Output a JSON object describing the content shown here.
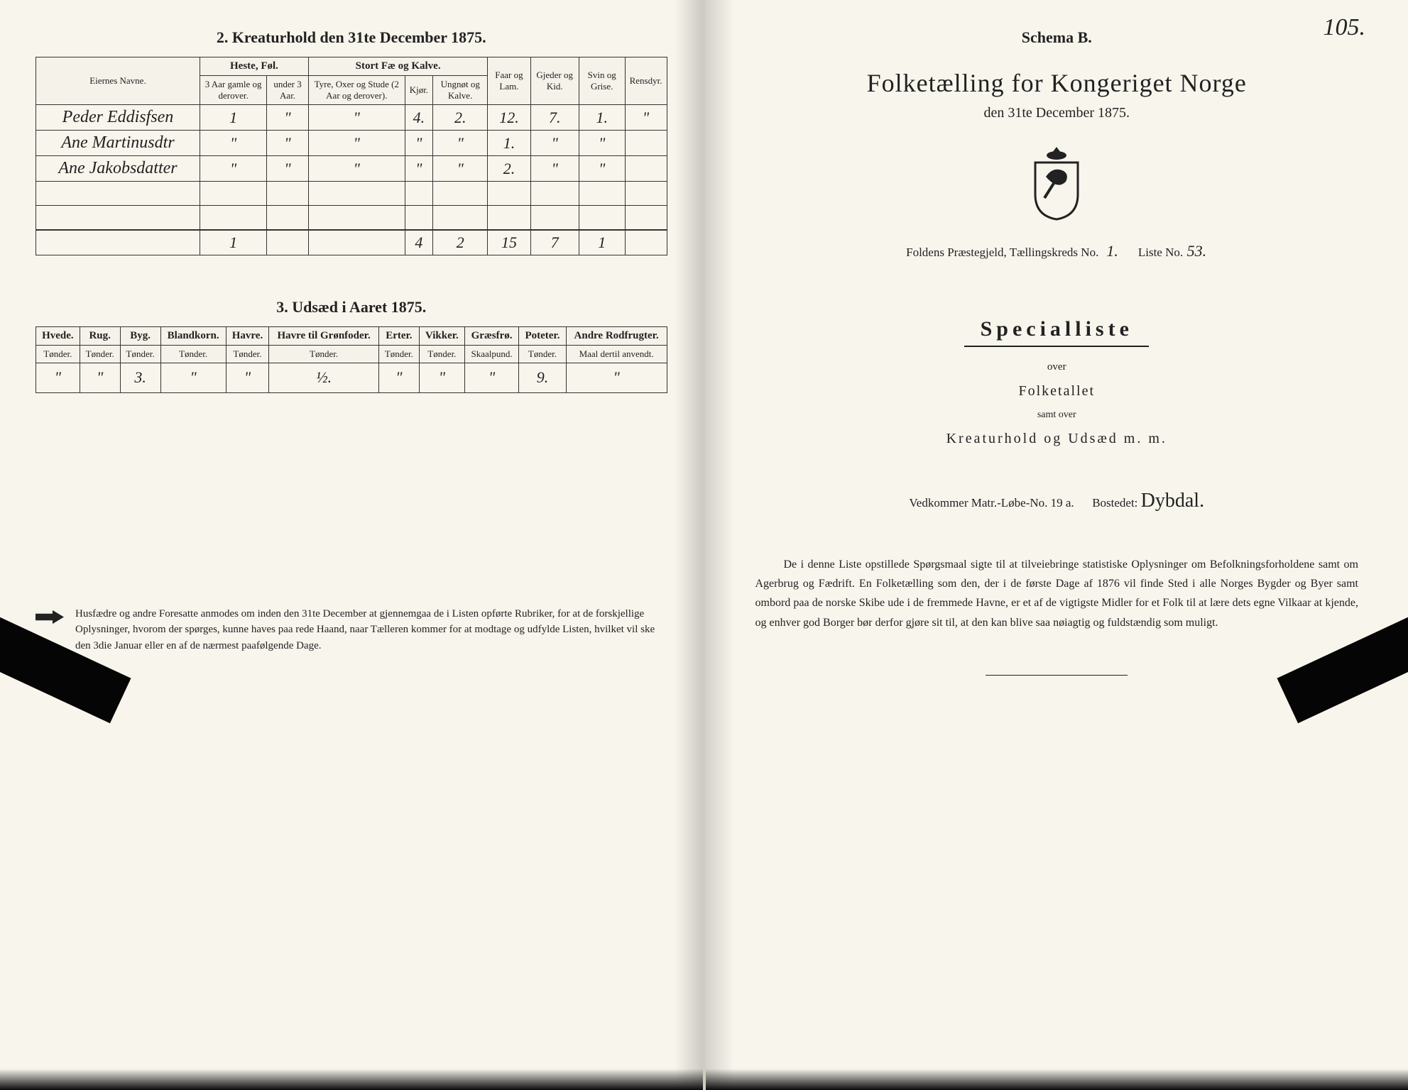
{
  "left": {
    "section2_title": "2.  Kreaturhold den 31te December 1875.",
    "table2": {
      "col_owner": "Eiernes Navne.",
      "grp_horses": "Heste, Føl.",
      "col_h1": "3 Aar gamle og derover.",
      "col_h2": "under 3 Aar.",
      "grp_cattle": "Stort Fæ og Kalve.",
      "col_c1": "Tyre, Oxer og Stude (2 Aar og derover).",
      "col_c2": "Kjør.",
      "col_c3": "Ungnøt og Kalve.",
      "col_sheep": "Faar og Lam.",
      "col_goat": "Gjeder og Kid.",
      "col_pig": "Svin og Grise.",
      "col_reind": "Rensdyr.",
      "rows": [
        {
          "name": "Peder Eddisfsen",
          "h1": "1",
          "h2": "\"",
          "c1": "\"",
          "c2": "4.",
          "c3": "2.",
          "sheep": "12.",
          "goat": "7.",
          "pig": "1.",
          "reind": "\""
        },
        {
          "name": "Ane Martinusdtr",
          "h1": "\"",
          "h2": "\"",
          "c1": "\"",
          "c2": "\"",
          "c3": "\"",
          "sheep": "1.",
          "goat": "\"",
          "pig": "\"",
          "reind": ""
        },
        {
          "name": "Ane Jakobsdatter",
          "h1": "\"",
          "h2": "\"",
          "c1": "\"",
          "c2": "\"",
          "c3": "\"",
          "sheep": "2.",
          "goat": "\"",
          "pig": "\"",
          "reind": ""
        }
      ],
      "totals": {
        "h1": "1",
        "c2": "4",
        "c3": "2",
        "sheep": "15",
        "goat": "7",
        "pig": "1"
      }
    },
    "section3_title": "3.  Udsæd i Aaret 1875.",
    "table3": {
      "cols": [
        "Hvede.",
        "Rug.",
        "Byg.",
        "Blandkorn.",
        "Havre.",
        "Havre til Grønfoder.",
        "Erter.",
        "Vikker.",
        "Græsfrø.",
        "Poteter.",
        "Andre Rodfrugter."
      ],
      "units": [
        "Tønder.",
        "Tønder.",
        "Tønder.",
        "Tønder.",
        "Tønder.",
        "Tønder.",
        "Tønder.",
        "Tønder.",
        "Skaalpund.",
        "Tønder.",
        "Maal dertil anvendt."
      ],
      "row": [
        "\"",
        "\"",
        "3.",
        "\"",
        "\"",
        "½.",
        "\"",
        "\"",
        "\"",
        "9.",
        "\""
      ]
    },
    "footnote": "Husfædre og andre Foresatte anmodes om inden den 31te December at gjennemgaa de i Listen opførte Rubriker, for at de forskjellige Oplysninger, hvorom der spørges, kunne haves paa rede Haand, naar Tælleren kommer for at modtage og udfylde Listen, hvilket vil ske den 3die Januar eller en af de nærmest paafølgende Dage."
  },
  "right": {
    "schema": "Schema B.",
    "page_number": "105.",
    "main_title": "Folketælling for Kongeriget Norge",
    "subtitle": "den 31te December 1875.",
    "meta_prefix": "Foldens Præstegjeld,   Tællingskreds No.",
    "meta_kreds": "1.",
    "meta_liste_label": "Liste No.",
    "meta_liste": "53.",
    "special": "Specialliste",
    "over": "over",
    "folketallet": "Folketallet",
    "samt": "samt over",
    "kreatur": "Kreaturhold  og  Udsæd  m. m.",
    "vedk_label": "Vedkommer Matr.-Løbe-No.",
    "vedk_no": "19 a.",
    "bostedet_label": "Bostedet:",
    "bostedet": "Dybdal.",
    "body": "De i denne Liste opstillede Spørgsmaal sigte til at tilveiebringe statistiske Oplysninger om Befolkningsforholdene samt om Agerbrug og Fædrift.  En Folketælling som den, der i de første Dage af 1876 vil finde Sted i alle Norges Bygder og Byer samt ombord paa de norske Skibe ude i de fremmede Havne, er et af de vigtigste Midler for et Folk til at lære dets egne Vilkaar at kjende, og enhver god Borger bør derfor gjøre sit til, at den kan blive saa nøiagtig og fuldstændig som muligt."
  },
  "colors": {
    "paper": "#f8f5ed",
    "ink": "#222222",
    "rule": "#333333"
  }
}
